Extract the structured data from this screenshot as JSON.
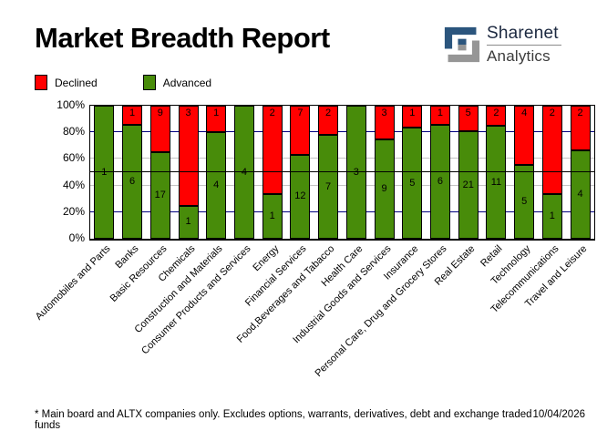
{
  "header": {
    "title": "Market Breadth Report",
    "brand": {
      "name": "Sharenet",
      "division": "Analytics"
    }
  },
  "legend": {
    "items": [
      {
        "label": "Declined",
        "color": "#ff0000"
      },
      {
        "label": "Advanced",
        "color": "#488c0a"
      }
    ]
  },
  "chart_data": {
    "type": "bar",
    "stacked": true,
    "percent_stacked": true,
    "title": "Market Breadth Report",
    "categories": [
      "Automobiles and Parts",
      "Banks",
      "Basic Resources",
      "Chemicals",
      "Construction and Materials",
      "Consumer Products and Services",
      "Energy",
      "Financial Services",
      "Food,Beverages and Tabacco",
      "Health Care",
      "Industrial Goods and Services",
      "Insurance",
      "Personal Care, Drug and Grocery Stores",
      "Real Estate",
      "Retail",
      "Technology",
      "Telecommunications",
      "Travel and Leisure"
    ],
    "series": [
      {
        "name": "Advanced",
        "color": "#488c0a",
        "values": [
          1,
          6,
          17,
          1,
          4,
          4,
          1,
          12,
          7,
          3,
          9,
          5,
          6,
          21,
          11,
          5,
          1,
          4
        ]
      },
      {
        "name": "Declined",
        "color": "#ff0000",
        "values": [
          0,
          1,
          9,
          3,
          1,
          0,
          2,
          7,
          2,
          0,
          3,
          1,
          1,
          5,
          2,
          4,
          2,
          2
        ]
      }
    ],
    "ylabel": "",
    "xlabel": "",
    "ylim": [
      0,
      100
    ],
    "yticks": {
      "values": [
        0,
        20,
        40,
        60,
        80,
        100
      ],
      "labels": [
        "0%",
        "20%",
        "40%",
        "60%",
        "80%",
        "100%"
      ]
    },
    "gridlines": [
      {
        "value": 20,
        "color": "#000080",
        "over_bars": false
      },
      {
        "value": 40,
        "color": "#c4c4c4",
        "over_bars": false
      },
      {
        "value": 60,
        "color": "#c4c4c4",
        "over_bars": false
      },
      {
        "value": 80,
        "color": "#000080",
        "over_bars": false
      },
      {
        "value": 50,
        "color": "#000000",
        "over_bars": true
      }
    ],
    "legend_position": "top-left",
    "bar_outline_color": "#000000"
  },
  "footer": {
    "note": "* Main board and ALTX companies only. Excludes options, warrants, derivatives, debt and exchange traded funds",
    "date": "10/04/2026"
  }
}
